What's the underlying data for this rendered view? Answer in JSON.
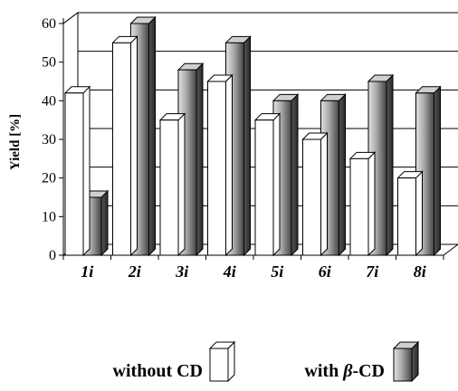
{
  "chart_data": {
    "type": "bar",
    "style": "3d-clustered",
    "categories": [
      "1i",
      "2i",
      "3i",
      "4i",
      "5i",
      "6i",
      "7i",
      "8i"
    ],
    "series": [
      {
        "name": "without CD",
        "values": [
          42,
          55,
          35,
          45,
          35,
          30,
          25,
          20
        ],
        "color": "#ffffff"
      },
      {
        "name": "with β-CD",
        "values": [
          15,
          60,
          48,
          55,
          40,
          40,
          45,
          42
        ],
        "color": "#9a9a9a"
      }
    ],
    "ylabel": "Yield [%]",
    "ylim": [
      0,
      60
    ],
    "yticks": [
      0,
      10,
      20,
      30,
      40,
      50,
      60
    ],
    "grid": true,
    "legend": {
      "position": "bottom",
      "items": [
        {
          "prefix": "without CD",
          "symbol": "",
          "suffix": ""
        },
        {
          "prefix": "with ",
          "symbol": "β",
          "suffix": "-CD"
        }
      ]
    }
  }
}
